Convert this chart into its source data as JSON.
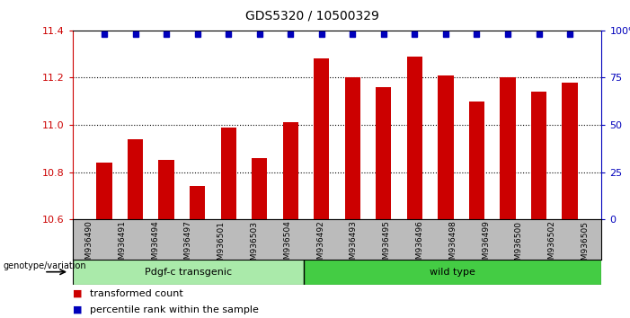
{
  "title": "GDS5320 / 10500329",
  "categories": [
    "GSM936490",
    "GSM936491",
    "GSM936494",
    "GSM936497",
    "GSM936501",
    "GSM936503",
    "GSM936504",
    "GSM936492",
    "GSM936493",
    "GSM936495",
    "GSM936496",
    "GSM936498",
    "GSM936499",
    "GSM936500",
    "GSM936502",
    "GSM936505"
  ],
  "bar_values": [
    10.84,
    10.94,
    10.85,
    10.74,
    10.99,
    10.86,
    11.01,
    11.28,
    11.2,
    11.16,
    11.29,
    11.21,
    11.1,
    11.2,
    11.14,
    11.18
  ],
  "percentile_values": [
    98,
    98,
    98,
    98,
    98,
    98,
    98,
    98,
    98,
    98,
    98,
    98,
    98,
    98,
    98,
    98
  ],
  "ylim_left": [
    10.6,
    11.4
  ],
  "ylim_right": [
    0,
    100
  ],
  "yticks_left": [
    10.6,
    10.8,
    11.0,
    11.2,
    11.4
  ],
  "yticks_right": [
    0,
    25,
    50,
    75,
    100
  ],
  "bar_color": "#cc0000",
  "dot_color": "#0000bb",
  "group1_label": "Pdgf-c transgenic",
  "group2_label": "wild type",
  "group1_color": "#aaeaaa",
  "group2_color": "#44cc44",
  "n_group1": 7,
  "n_group2": 9,
  "bg_color": "#bbbbbb",
  "plot_bg": "#ffffff",
  "genotype_label": "genotype/variation",
  "legend_bar_label": "transformed count",
  "legend_dot_label": "percentile rank within the sample"
}
